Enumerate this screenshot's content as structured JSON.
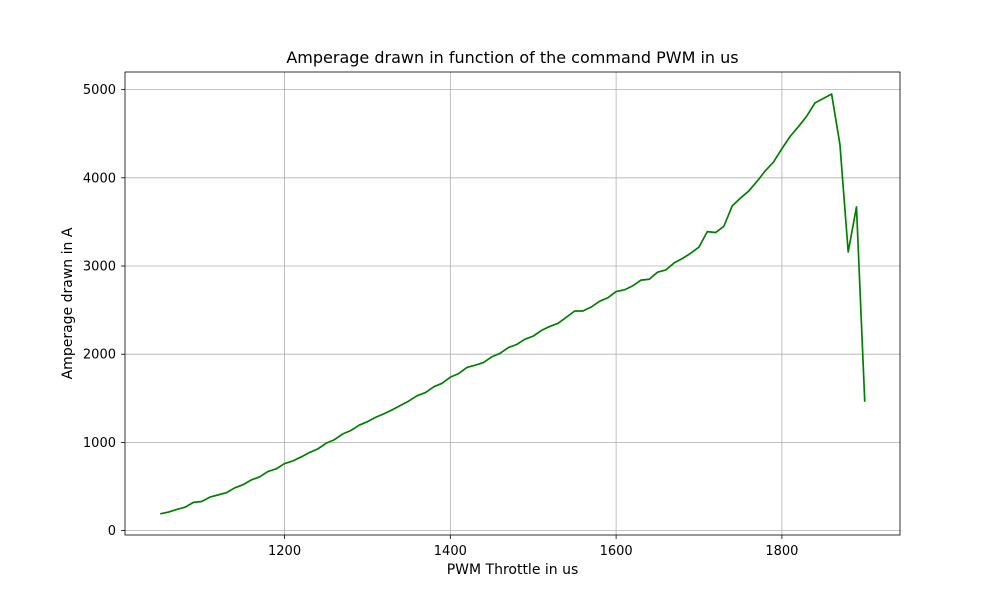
{
  "chart_data": {
    "type": "line",
    "title": "Amperage drawn in function of the command PWM in us",
    "xlabel": "PWM Throttle in us",
    "ylabel": "Amperage drawn in A",
    "xlim": [
      1007.5,
      1942.5
    ],
    "ylim": [
      -50,
      5200
    ],
    "xticks": [
      1200,
      1400,
      1600,
      1800
    ],
    "yticks": [
      0,
      1000,
      2000,
      3000,
      4000,
      5000
    ],
    "grid": true,
    "series": [
      {
        "color": "#008000",
        "x": [
          1050,
          1060,
          1070,
          1080,
          1090,
          1100,
          1110,
          1120,
          1130,
          1140,
          1150,
          1160,
          1170,
          1180,
          1190,
          1200,
          1210,
          1220,
          1230,
          1240,
          1250,
          1260,
          1270,
          1280,
          1290,
          1300,
          1310,
          1320,
          1330,
          1340,
          1350,
          1360,
          1370,
          1380,
          1390,
          1400,
          1410,
          1420,
          1430,
          1440,
          1450,
          1460,
          1470,
          1480,
          1490,
          1500,
          1510,
          1520,
          1530,
          1540,
          1550,
          1560,
          1570,
          1580,
          1590,
          1600,
          1610,
          1620,
          1630,
          1640,
          1650,
          1660,
          1670,
          1680,
          1690,
          1700,
          1710,
          1720,
          1730,
          1740,
          1750,
          1760,
          1770,
          1780,
          1790,
          1800,
          1810,
          1820,
          1830,
          1840,
          1850,
          1860,
          1870,
          1880,
          1890,
          1900
        ],
        "values": [
          190,
          210,
          240,
          265,
          320,
          330,
          380,
          405,
          430,
          485,
          520,
          575,
          610,
          670,
          700,
          760,
          790,
          835,
          885,
          925,
          990,
          1030,
          1095,
          1135,
          1195,
          1235,
          1285,
          1325,
          1370,
          1420,
          1470,
          1530,
          1565,
          1630,
          1670,
          1740,
          1780,
          1850,
          1875,
          1905,
          1970,
          2010,
          2075,
          2110,
          2170,
          2205,
          2270,
          2315,
          2350,
          2420,
          2490,
          2490,
          2535,
          2600,
          2640,
          2710,
          2730,
          2775,
          2840,
          2850,
          2930,
          2955,
          3035,
          3085,
          3145,
          3215,
          3390,
          3380,
          3450,
          3680,
          3770,
          3850,
          3960,
          4080,
          4180,
          4330,
          4470,
          4580,
          4700,
          4850,
          4900,
          4950,
          4380,
          3160,
          3670,
          1460
        ]
      }
    ]
  }
}
